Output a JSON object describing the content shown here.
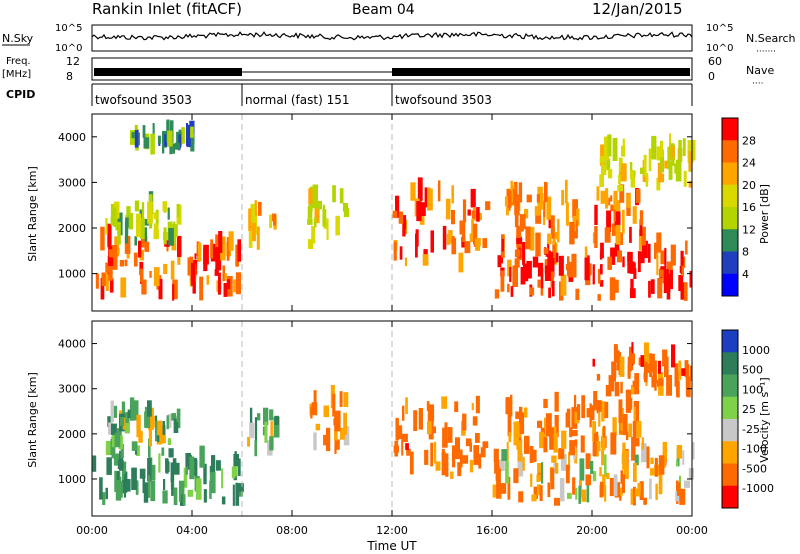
{
  "header": {
    "title": "Rankin Inlet (fitACF)",
    "beam": "Beam 04",
    "date": "12/Jan/2015"
  },
  "top_panels": {
    "nsky_label": "N.Sky",
    "nsearch_label": "N.Search",
    "nsearch_legend": "·······",
    "nsky_ticks": [
      "10^5",
      "10^0"
    ],
    "nsearch_ticks": [
      "10^5",
      "10^0"
    ],
    "freq_label_1": "Freq.",
    "freq_label_2": "[MHz]",
    "freq_ticks": [
      "12",
      "8"
    ],
    "nave_label": "Nave",
    "nave_legend": "····",
    "nave_ticks": [
      "60",
      "0"
    ],
    "cpid_label": "CPID",
    "cpid_segments": [
      {
        "label": "twofsound 3503",
        "start_hour": 0,
        "end_hour": 6
      },
      {
        "label": "normal (fast) 151",
        "start_hour": 6,
        "end_hour": 12
      },
      {
        "label": "twofsound 3503",
        "start_hour": 12,
        "end_hour": 24
      }
    ]
  },
  "colorbars": {
    "power_title": "Power [dB]",
    "power_ticks": [
      "28",
      "24",
      "20",
      "16",
      "12",
      "8",
      "4"
    ],
    "power_colors": [
      "#ff0000",
      "#ff6a00",
      "#ffa500",
      "#d9d900",
      "#b4d400",
      "#2e8b57",
      "#1f3fbf",
      "#0000ff"
    ],
    "velocity_title": "Velocity [m s⁻¹]",
    "velocity_ticks": [
      "1000",
      "500",
      "100",
      "25",
      "-25",
      "-100",
      "-500",
      "-1000"
    ],
    "velocity_colors": [
      "#1c3fbf",
      "#2d7c5a",
      "#4aa35a",
      "#7fd14a",
      "#c8c8c8",
      "#ffa500",
      "#ff6a00",
      "#ff0000"
    ]
  },
  "axes": {
    "ylabel": "Slant Range [km]",
    "xlabel": "Time UT",
    "y_ticks": [
      "4000",
      "3000",
      "2000",
      "1000"
    ],
    "x_ticks": [
      "00:00",
      "04:00",
      "08:00",
      "12:00",
      "16:00",
      "20:00",
      "00:00"
    ]
  },
  "chart_data": [
    {
      "type": "heatmap",
      "quantity": "Power [dB]",
      "x_range_hours": [
        0,
        24
      ],
      "ylim_km": [
        180,
        4500
      ],
      "color_scale": [
        0,
        30
      ],
      "regions": [
        {
          "t0": 0.0,
          "t1": 6.0,
          "r0": 400,
          "r1": 1600,
          "power": 26
        },
        {
          "t0": 0.5,
          "t1": 3.5,
          "r0": 1600,
          "r1": 2400,
          "power": 14
        },
        {
          "t0": 1.5,
          "t1": 4.0,
          "r0": 3600,
          "r1": 4000,
          "power": 8
        },
        {
          "t0": 6.2,
          "t1": 7.3,
          "r0": 1500,
          "r1": 2300,
          "power": 22
        },
        {
          "t0": 8.6,
          "t1": 10.2,
          "r0": 1500,
          "r1": 2600,
          "power": 16
        },
        {
          "t0": 12.0,
          "t1": 15.8,
          "r0": 1000,
          "r1": 2600,
          "power": 26
        },
        {
          "t0": 16.0,
          "t1": 24.0,
          "r0": 400,
          "r1": 1500,
          "power": 28
        },
        {
          "t0": 16.5,
          "t1": 22.0,
          "r0": 1500,
          "r1": 2600,
          "power": 24
        },
        {
          "t0": 20.0,
          "t1": 24.0,
          "r0": 2800,
          "r1": 3600,
          "power": 16
        }
      ]
    },
    {
      "type": "heatmap",
      "quantity": "Velocity [m s-1]",
      "x_range_hours": [
        0,
        24
      ],
      "ylim_km": [
        180,
        4500
      ],
      "color_scale": [
        -1000,
        1000
      ],
      "regions": [
        {
          "t0": 0.0,
          "t1": 6.0,
          "r0": 400,
          "r1": 1600,
          "velocity": 300
        },
        {
          "t0": 0.5,
          "t1": 3.5,
          "r0": 1600,
          "r1": 2400,
          "velocity": 100
        },
        {
          "t0": 6.2,
          "t1": 7.3,
          "r0": 1500,
          "r1": 2300,
          "velocity": 100
        },
        {
          "t0": 8.6,
          "t1": 10.2,
          "r0": 1500,
          "r1": 2600,
          "velocity": -300
        },
        {
          "t0": 12.0,
          "t1": 15.8,
          "r0": 1000,
          "r1": 2600,
          "velocity": -500
        },
        {
          "t0": 16.0,
          "t1": 24.0,
          "r0": 400,
          "r1": 1500,
          "velocity": -200
        },
        {
          "t0": 16.5,
          "t1": 22.0,
          "r0": 1500,
          "r1": 2600,
          "velocity": -400
        },
        {
          "t0": 20.0,
          "t1": 24.0,
          "r0": 2800,
          "r1": 3600,
          "velocity": -500
        }
      ]
    }
  ]
}
